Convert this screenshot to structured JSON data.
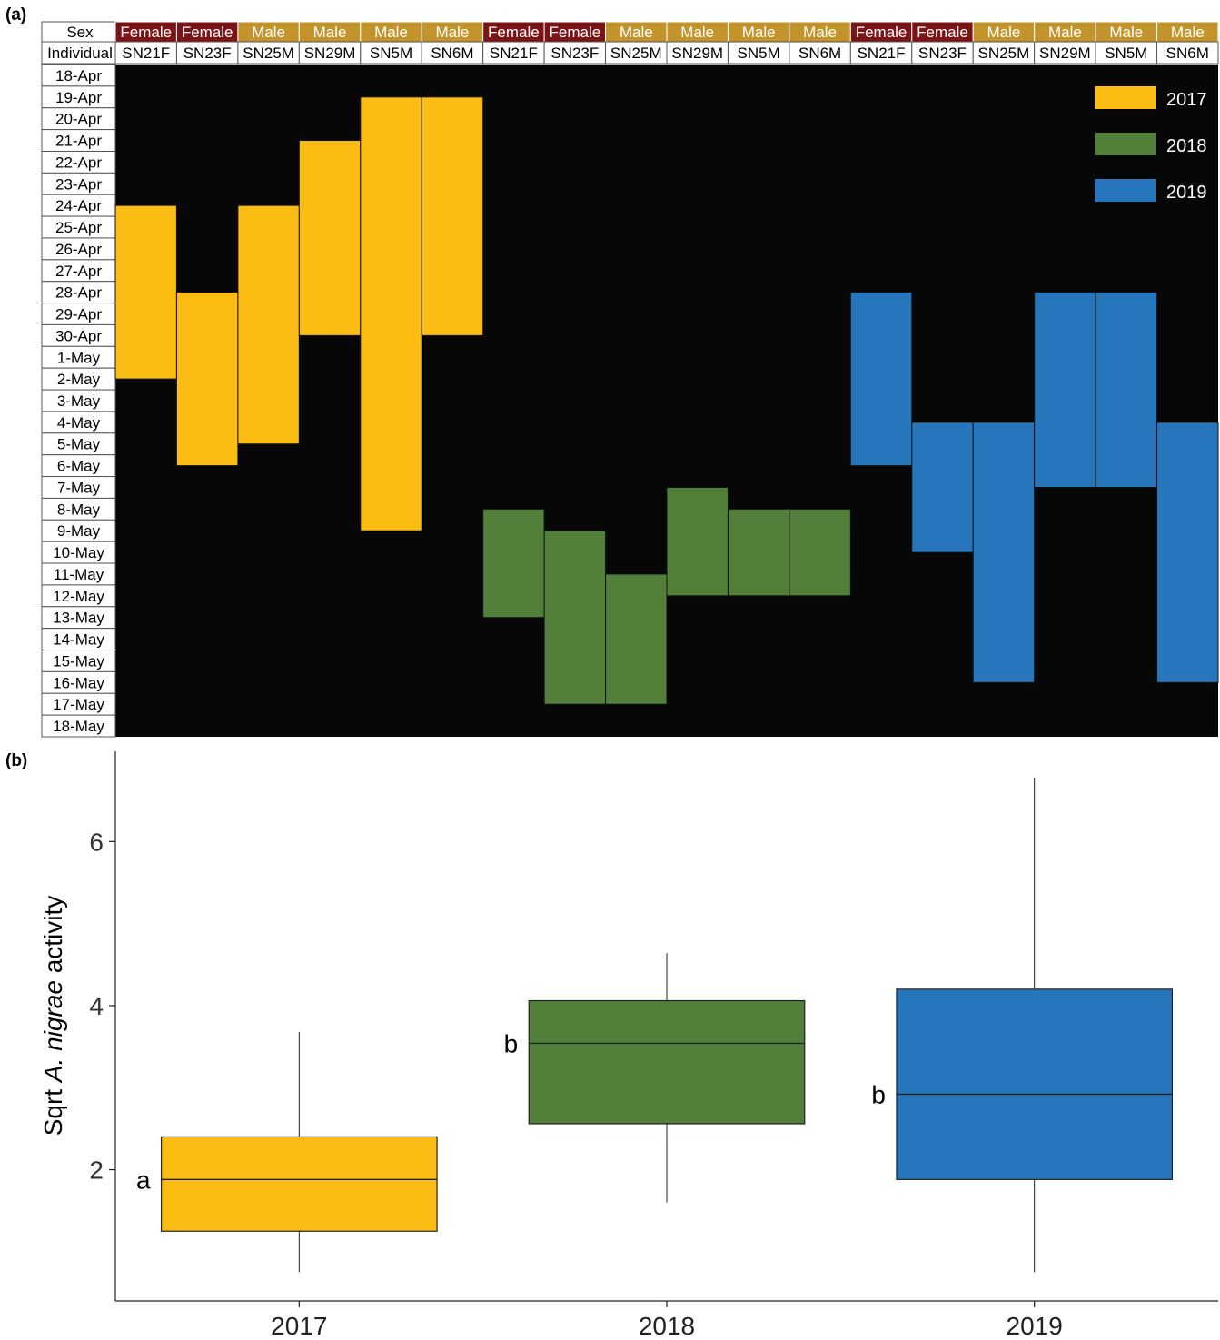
{
  "panel_a": {
    "label": "(a)",
    "sex_row_label": "Sex",
    "individual_row_label": "Individual",
    "colors": {
      "Female": "#7b1416",
      "Male": "#c4942c",
      "background": "#070707"
    }
  },
  "panel_b": {
    "label": "(b)"
  },
  "chart_data": [
    {
      "type": "timeline",
      "description_dates": "Each bar spans first to last active date for an individual in a given year",
      "dates": [
        "18-Apr",
        "19-Apr",
        "20-Apr",
        "21-Apr",
        "22-Apr",
        "23-Apr",
        "24-Apr",
        "25-Apr",
        "26-Apr",
        "27-Apr",
        "28-Apr",
        "29-Apr",
        "30-Apr",
        "1-May",
        "2-May",
        "3-May",
        "4-May",
        "5-May",
        "6-May",
        "7-May",
        "8-May",
        "9-May",
        "10-May",
        "11-May",
        "12-May",
        "13-May",
        "14-May",
        "15-May",
        "16-May",
        "17-May",
        "18-May"
      ],
      "columns": [
        {
          "year": "2017",
          "sex": "Female",
          "individual": "SN21F"
        },
        {
          "year": "2017",
          "sex": "Female",
          "individual": "SN23F"
        },
        {
          "year": "2017",
          "sex": "Male",
          "individual": "SN25M"
        },
        {
          "year": "2017",
          "sex": "Male",
          "individual": "SN29M"
        },
        {
          "year": "2017",
          "sex": "Male",
          "individual": "SN5M"
        },
        {
          "year": "2017",
          "sex": "Male",
          "individual": "SN6M"
        },
        {
          "year": "2018",
          "sex": "Female",
          "individual": "SN21F"
        },
        {
          "year": "2018",
          "sex": "Female",
          "individual": "SN23F"
        },
        {
          "year": "2018",
          "sex": "Male",
          "individual": "SN25M"
        },
        {
          "year": "2018",
          "sex": "Male",
          "individual": "SN29M"
        },
        {
          "year": "2018",
          "sex": "Male",
          "individual": "SN5M"
        },
        {
          "year": "2018",
          "sex": "Male",
          "individual": "SN6M"
        },
        {
          "year": "2019",
          "sex": "Female",
          "individual": "SN21F"
        },
        {
          "year": "2019",
          "sex": "Female",
          "individual": "SN23F"
        },
        {
          "year": "2019",
          "sex": "Male",
          "individual": "SN25M"
        },
        {
          "year": "2019",
          "sex": "Male",
          "individual": "SN29M"
        },
        {
          "year": "2019",
          "sex": "Male",
          "individual": "SN5M"
        },
        {
          "year": "2019",
          "sex": "Male",
          "individual": "SN6M"
        }
      ],
      "bars": [
        {
          "col": 0,
          "year": "2017",
          "start": "24-Apr",
          "end": "2-May"
        },
        {
          "col": 1,
          "year": "2017",
          "start": "28-Apr",
          "end": "6-May"
        },
        {
          "col": 2,
          "year": "2017",
          "start": "24-Apr",
          "end": "5-May"
        },
        {
          "col": 3,
          "year": "2017",
          "start": "21-Apr",
          "end": "30-Apr"
        },
        {
          "col": 4,
          "year": "2017",
          "start": "19-Apr",
          "end": "9-May"
        },
        {
          "col": 5,
          "year": "2017",
          "start": "19-Apr",
          "end": "30-Apr"
        },
        {
          "col": 6,
          "year": "2018",
          "start": "8-May",
          "end": "13-May"
        },
        {
          "col": 7,
          "year": "2018",
          "start": "9-May",
          "end": "17-May"
        },
        {
          "col": 8,
          "year": "2018",
          "start": "11-May",
          "end": "17-May"
        },
        {
          "col": 9,
          "year": "2018",
          "start": "7-May",
          "end": "12-May"
        },
        {
          "col": 10,
          "year": "2018",
          "start": "8-May",
          "end": "12-May"
        },
        {
          "col": 11,
          "year": "2018",
          "start": "8-May",
          "end": "12-May"
        },
        {
          "col": 12,
          "year": "2019",
          "start": "28-Apr",
          "end": "6-May"
        },
        {
          "col": 13,
          "year": "2019",
          "start": "4-May",
          "end": "10-May"
        },
        {
          "col": 14,
          "year": "2019",
          "start": "4-May",
          "end": "16-May"
        },
        {
          "col": 15,
          "year": "2019",
          "start": "28-Apr",
          "end": "7-May"
        },
        {
          "col": 16,
          "year": "2019",
          "start": "28-Apr",
          "end": "7-May"
        },
        {
          "col": 17,
          "year": "2019",
          "start": "4-May",
          "end": "16-May"
        }
      ],
      "legend": [
        {
          "name": "2017",
          "color": "#fbbc13"
        },
        {
          "name": "2018",
          "color": "#527f3a"
        },
        {
          "name": "2019",
          "color": "#2775ba"
        }
      ],
      "legend_position": "top-right"
    },
    {
      "type": "boxplot",
      "ylabel_prefix": "Sqrt ",
      "ylabel_italic": "A. nigrae",
      "ylabel_suffix": " activity",
      "ylim": [
        0.4,
        7.1
      ],
      "yticks": [
        2,
        4,
        6
      ],
      "categories": [
        "2017",
        "2018",
        "2019"
      ],
      "boxes": [
        {
          "category": "2017",
          "min": 0.75,
          "q1": 1.25,
          "median": 1.88,
          "q3": 2.4,
          "max": 3.68,
          "letter": "a",
          "color": "#fbbc13"
        },
        {
          "category": "2018",
          "min": 1.6,
          "q1": 2.56,
          "median": 3.54,
          "q3": 4.06,
          "max": 4.64,
          "letter": "b",
          "color": "#527f3a"
        },
        {
          "category": "2019",
          "min": 0.75,
          "q1": 1.88,
          "median": 2.92,
          "q3": 4.2,
          "max": 6.78,
          "letter": "b",
          "color": "#2775ba"
        }
      ]
    }
  ]
}
